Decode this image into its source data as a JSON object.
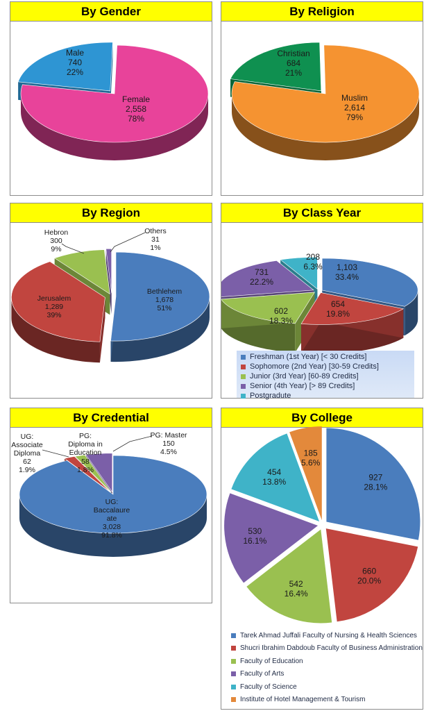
{
  "chart_data": [
    {
      "id": "gender",
      "type": "pie",
      "title": "By Gender",
      "slices": [
        {
          "label": "Male",
          "value": 740,
          "value_text": "740",
          "percent": "22%",
          "color": "#2e95d3"
        },
        {
          "label": "Female",
          "value": 2558,
          "value_text": "2,558",
          "percent": "78%",
          "color": "#e8439a"
        }
      ]
    },
    {
      "id": "religion",
      "type": "pie",
      "title": "By Religion",
      "slices": [
        {
          "label": "Christian",
          "value": 684,
          "value_text": "684",
          "percent": "21%",
          "color": "#0f9050"
        },
        {
          "label": "Muslim",
          "value": 2614,
          "value_text": "2,614",
          "percent": "79%",
          "color": "#f59331"
        }
      ]
    },
    {
      "id": "region",
      "type": "pie",
      "title": "By Region",
      "slices": [
        {
          "label": "Bethlehem",
          "value": 1678,
          "value_text": "1,678",
          "percent": "51%",
          "color": "#4a7dbd"
        },
        {
          "label": "Jerusalem",
          "value": 1289,
          "value_text": "1,289",
          "percent": "39%",
          "color": "#c1453f"
        },
        {
          "label": "Hebron",
          "value": 300,
          "value_text": "300",
          "percent": "9%",
          "color": "#9ac050"
        },
        {
          "label": "Others",
          "value": 31,
          "value_text": "31",
          "percent": "1%",
          "color": "#7b5fa8"
        }
      ]
    },
    {
      "id": "classyear",
      "type": "pie",
      "title": "By Class Year",
      "slices": [
        {
          "label": "Freshman (1st Year) [< 30 Credits]",
          "value": 1103,
          "value_text": "1,103",
          "percent": "33.4%",
          "color": "#4a7dbd"
        },
        {
          "label": "Sophomore (2nd Year)  [30-59 Credits]",
          "value": 654,
          "value_text": "654",
          "percent": "19.8%",
          "color": "#c1453f"
        },
        {
          "label": "Junior (3rd Year)  [60-89 Credits]",
          "value": 602,
          "value_text": "602",
          "percent": "18.3%",
          "color": "#9ac050"
        },
        {
          "label": "Senior (4th Year)  [> 89 Credits]",
          "value": 731,
          "value_text": "731",
          "percent": "22.2%",
          "color": "#7b5fa8"
        },
        {
          "label": "Postgradute",
          "value": 208,
          "value_text": "208",
          "percent": "6.3%",
          "color": "#3fb3c8"
        }
      ]
    },
    {
      "id": "credential",
      "type": "pie",
      "title": "By Credential",
      "slices": [
        {
          "label": "UG: Baccalaureate",
          "value": 3028,
          "value_text": "3,028",
          "percent": "91.8%",
          "color": "#4a7dbd"
        },
        {
          "label": "UG: Associate Diploma",
          "value": 62,
          "value_text": "62",
          "percent": "1.9%",
          "color": "#c1453f"
        },
        {
          "label": "PG: Diploma in Education",
          "value": 58,
          "value_text": "58",
          "percent": "1.8%",
          "color": "#9ac050"
        },
        {
          "label": "PG: Master",
          "value": 150,
          "value_text": "150",
          "percent": "4.5%",
          "color": "#7b5fa8"
        }
      ]
    },
    {
      "id": "college",
      "type": "pie",
      "title": "By College",
      "slices": [
        {
          "label": "Tarek Ahmad Juffali Faculty of Nursing & Health Sciences",
          "value": 927,
          "value_text": "927",
          "percent": "28.1%",
          "color": "#4a7dbd"
        },
        {
          "label": "Shucri Ibrahim Dabdoub Faculty of Business Administration",
          "value": 660,
          "value_text": "660",
          "percent": "20.0%",
          "color": "#c1453f"
        },
        {
          "label": "Faculty of Education",
          "value": 542,
          "value_text": "542",
          "percent": "16.4%",
          "color": "#9ac050"
        },
        {
          "label": "Faculty of Arts",
          "value": 530,
          "value_text": "530",
          "percent": "16.1%",
          "color": "#7b5fa8"
        },
        {
          "label": "Faculty of Science",
          "value": 454,
          "value_text": "454",
          "percent": "13.8%",
          "color": "#3fb3c8"
        },
        {
          "label": "Institute of Hotel Management & Tourism",
          "value": 185,
          "value_text": "185",
          "percent": "5.6%",
          "color": "#e3893b"
        }
      ]
    }
  ],
  "credential_text": {
    "bacc": [
      "UG:",
      "Baccalaure",
      "ate"
    ],
    "assoc": [
      "UG:",
      "Associate",
      "Diploma"
    ],
    "dipedu": [
      "PG:",
      "Diploma in",
      "Education"
    ],
    "master": [
      "PG: Master"
    ]
  }
}
